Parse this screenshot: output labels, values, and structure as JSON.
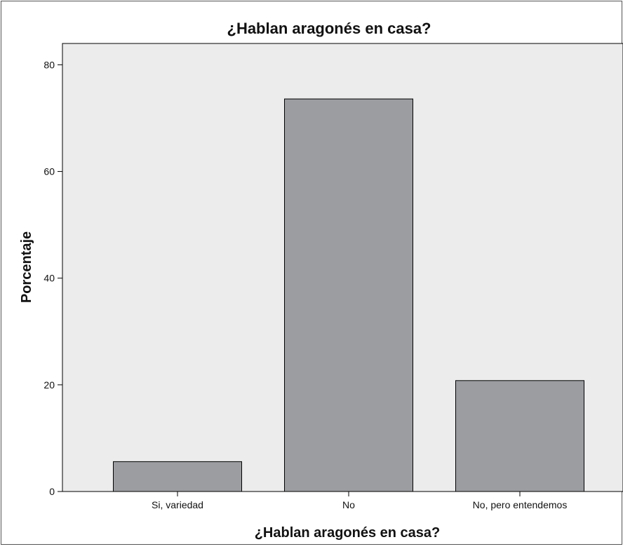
{
  "chart_data": {
    "type": "bar",
    "title": "¿Hablan aragonés en casa?",
    "xlabel": "¿Hablan aragonés en casa?",
    "ylabel": "Porcentaje",
    "categories": [
      "Si, variedad",
      "No",
      "No, pero entendemos"
    ],
    "values": [
      5.6,
      73.6,
      20.8
    ],
    "ylim": [
      0,
      84
    ],
    "yticks": [
      0,
      20,
      40,
      60,
      80
    ],
    "ytick_labels": [
      "0",
      "20",
      "40",
      "60",
      "80"
    ],
    "grid": false,
    "bar_color": "#9c9da1",
    "plot_background": "#ececec"
  }
}
